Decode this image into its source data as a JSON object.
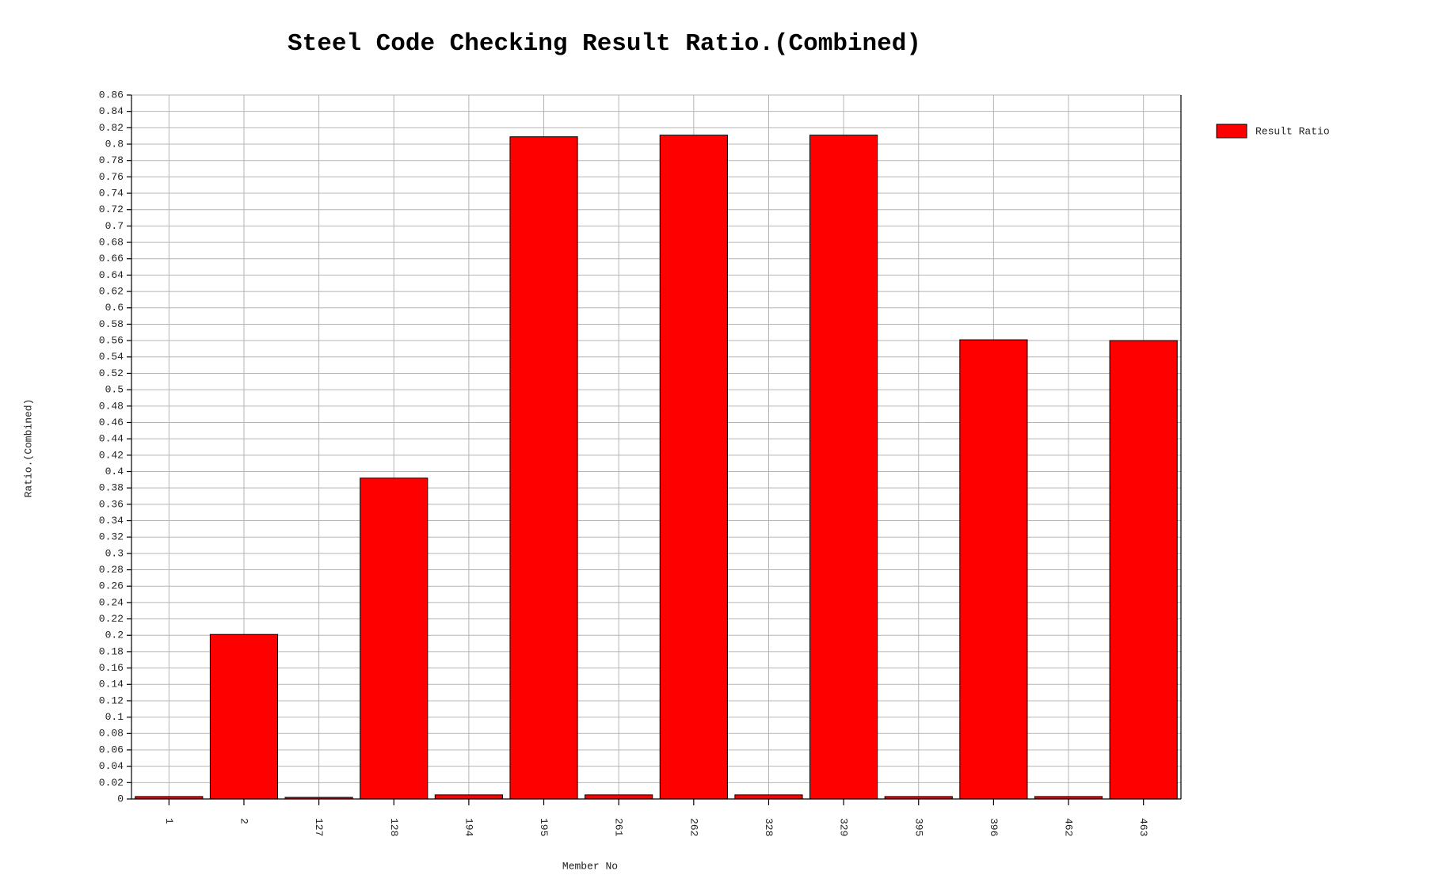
{
  "chart_data": {
    "type": "bar",
    "title": "Steel Code Checking Result Ratio.(Combined)",
    "x_label": "Member No",
    "y_label": "Ratio.(Combined)",
    "categories": [
      "1",
      "2",
      "127",
      "128",
      "194",
      "195",
      "261",
      "262",
      "328",
      "329",
      "395",
      "396",
      "462",
      "463"
    ],
    "series": [
      {
        "name": "Result Ratio",
        "color": "#ff0000",
        "values": [
          0.003,
          0.201,
          0.002,
          0.392,
          0.005,
          0.809,
          0.005,
          0.811,
          0.005,
          0.811,
          0.003,
          0.561,
          0.003,
          0.56
        ]
      }
    ],
    "ylim": [
      0,
      0.86
    ],
    "yticks": [
      0,
      0.02,
      0.04,
      0.06,
      0.08,
      0.1,
      0.12,
      0.14,
      0.16,
      0.18,
      0.2,
      0.22,
      0.24,
      0.26,
      0.28,
      0.3,
      0.32,
      0.34,
      0.36,
      0.38,
      0.4,
      0.42,
      0.44,
      0.46,
      0.48,
      0.5,
      0.52,
      0.54,
      0.56,
      0.58,
      0.6,
      0.62,
      0.64,
      0.66,
      0.68,
      0.7,
      0.72,
      0.74,
      0.76,
      0.78,
      0.8,
      0.82,
      0.84,
      0.86
    ],
    "grid": true,
    "legend": "top-right"
  }
}
